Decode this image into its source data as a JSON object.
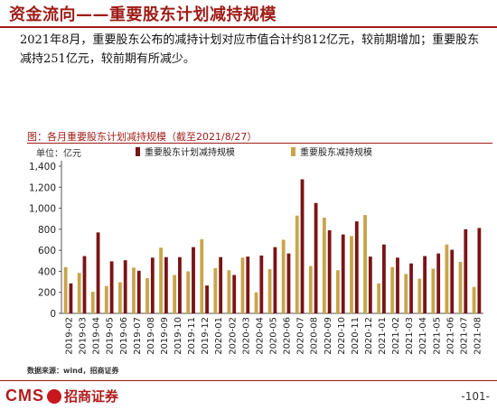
{
  "header": {
    "title": "资金流向——重要股东计划减持规模"
  },
  "summary": "2021年8月，重要股东公布的减持计划对应市值合计约812亿元，较前期增加；重要股东减持251亿元，较前期有所减少。",
  "chart_data": {
    "type": "bar",
    "title": "图：各月重要股东计划减持规模（截至2021/8/27）",
    "unit_label": "单位：亿元",
    "ylim": [
      0,
      1400
    ],
    "yticks": [
      "0",
      "200",
      "400",
      "600",
      "800",
      "1,000",
      "1,200",
      "1,400"
    ],
    "categories": [
      "2019-02",
      "2019-03",
      "2019-04",
      "2019-05",
      "2019-06",
      "2019-07",
      "2019-08",
      "2019-09",
      "2019-10",
      "2019-11",
      "2019-12",
      "2020-01",
      "2020-02",
      "2020-03",
      "2020-04",
      "2020-05",
      "2020-06",
      "2020-07",
      "2020-08",
      "2020-09",
      "2020-10",
      "2020-11",
      "2020-12",
      "2021-01",
      "2021-02",
      "2021-03",
      "2021-04",
      "2021-05",
      "2021-06",
      "2021-07",
      "2021-08"
    ],
    "series": [
      {
        "name": "重要股东计划减持规模",
        "color": "#7a1416",
        "values": [
          285,
          545,
          770,
          495,
          505,
          405,
          530,
          535,
          535,
          630,
          265,
          535,
          365,
          540,
          550,
          630,
          570,
          1275,
          1050,
          790,
          750,
          875,
          540,
          655,
          530,
          475,
          545,
          570,
          605,
          800,
          812
        ]
      },
      {
        "name": "重要股东减持规模",
        "color": "#c8a54a",
        "values": [
          440,
          385,
          205,
          260,
          295,
          435,
          335,
          625,
          365,
          400,
          705,
          430,
          410,
          530,
          200,
          420,
          700,
          930,
          450,
          910,
          410,
          735,
          935,
          285,
          440,
          375,
          330,
          425,
          655,
          490,
          251
        ]
      }
    ]
  },
  "source": "数据来源：wind，招商证券",
  "footer": {
    "logo_text": "CMS",
    "logo_cn": "招商证券",
    "page_number": "-101-"
  }
}
